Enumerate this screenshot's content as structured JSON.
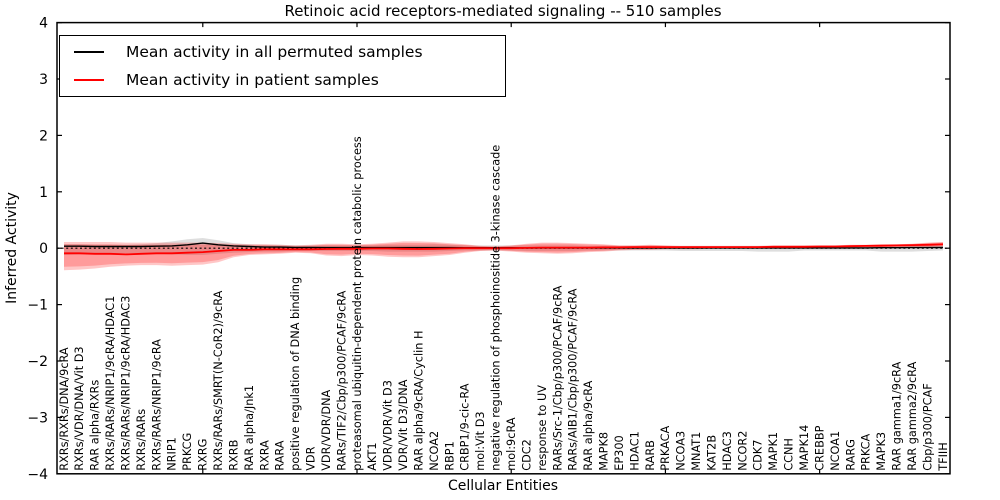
{
  "title": "Retinoic acid receptors-mediated signaling -- 510 samples",
  "axes": {
    "xlabel": "Cellular Entities",
    "ylabel": "Inferred Activity",
    "y_tick_labels": [
      "4",
      "3",
      "2",
      "1",
      "0",
      "−1",
      "−2",
      "−3",
      "−4"
    ],
    "y_tick_values": [
      4,
      3,
      2,
      1,
      0,
      -1,
      -2,
      -3,
      -4
    ]
  },
  "legend": {
    "items": [
      {
        "label": "Mean activity in all permuted samples",
        "color": "#000000"
      },
      {
        "label": "Mean activity in patient samples",
        "color": "#ff0000"
      }
    ]
  },
  "colors": {
    "permuted_line": "#000000",
    "patient_line": "#ff0000",
    "patient_band": "#ff0000",
    "permuted_band": "#000000",
    "frame": "#000000"
  },
  "chart_data": {
    "type": "line",
    "title": "Retinoic acid receptors-mediated signaling -- 510 samples",
    "xlabel": "Cellular Entities",
    "ylabel": "Inferred Activity",
    "ylim": [
      -4,
      4
    ],
    "grid": false,
    "legend_position": "upper left",
    "reference_line": {
      "y": 0,
      "style": "dashed",
      "color": "#000000"
    },
    "categories": [
      "RXRs/RXRs/DNA/9cRA",
      "RXRs/VDR/DNA/Vit D3",
      "RAR alpha/RXRs",
      "RXRs/RARs/NRIP1/9cRA/HDAC1",
      "RXRs/RARs/NRIP1/9cRA/HDAC3",
      "RXRs/RARs",
      "RXRs/RARs/NRIP1/9cRA",
      "NRIP1",
      "PRKCG",
      "RXRG",
      "RXRs/RARs/SMRT(N-CoR2)/9cRA",
      "RXRB",
      "RAR alpha/Jnk1",
      "RXRA",
      "RARA",
      "positive regulation of DNA binding",
      "VDR",
      "VDR/VDR/DNA",
      "RARs/TIF2/Cbp/p300/PCAF/9cRA",
      "proteasomal ubiquitin-dependent protein catabolic process",
      "AKT1",
      "VDR/VDR/Vit D3",
      "VDR/Vit D3/DNA",
      "RAR alpha/9cRA/Cyclin H",
      "NCOA2",
      "RBP1",
      "CRBP1/9-cic-RA",
      "mol:Vit D3",
      "negative regulation of phosphoinositide 3-kinase cascade",
      "mol:9cRA",
      "CDC2",
      "response to UV",
      "RARs/Src-1/Cbp/p300/PCAF/9cRA",
      "RARs/AIB1/Cbp/p300/PCAF/9cRA",
      "RAR alpha/9cRA",
      "MAPK8",
      "EP300",
      "HDAC1",
      "RARB",
      "PRKACA",
      "NCOA3",
      "MNAT1",
      "KAT2B",
      "HDAC3",
      "NCOR2",
      "CDK7",
      "MAPK1",
      "CCNH",
      "MAPK14",
      "CREBBP",
      "NCOA1",
      "RARG",
      "PRKCA",
      "MAPK3",
      "RAR gamma1/9cRA",
      "RAR gamma2/9cRA",
      "Cbp/p300/PCAF",
      "TFIIH"
    ],
    "series": [
      {
        "name": "Mean activity in all permuted samples",
        "color": "#000000",
        "values": [
          0.035,
          0.035,
          0.03,
          0.03,
          0.03,
          0.03,
          0.035,
          0.04,
          0.06,
          0.09,
          0.06,
          0.04,
          0.03,
          0.02,
          0.02,
          0.015,
          0.015,
          0.01,
          0.01,
          0.01,
          0.01,
          0.01,
          0.01,
          0.01,
          0.01,
          0.01,
          0.008,
          0.008,
          0.008,
          0.008,
          0.006,
          0.006,
          0.006,
          0.006,
          0.006,
          0.006,
          0.005,
          0.005,
          0.005,
          0.005,
          0.005,
          0.005,
          0.005,
          0.005,
          0.005,
          0.005,
          0.005,
          0.005,
          0.005,
          0.005,
          0.005,
          0.006,
          0.006,
          0.008,
          0.008,
          0.01,
          0.01,
          0.012
        ]
      },
      {
        "name": "Mean activity in patient samples",
        "color": "#ff0000",
        "values": [
          -0.09,
          -0.09,
          -0.1,
          -0.1,
          -0.11,
          -0.1,
          -0.09,
          -0.09,
          -0.08,
          -0.07,
          -0.05,
          -0.03,
          -0.03,
          -0.02,
          -0.02,
          -0.02,
          -0.02,
          -0.015,
          -0.01,
          -0.01,
          -0.005,
          -0.005,
          -0.01,
          -0.015,
          -0.01,
          -0.005,
          0,
          0,
          0,
          0,
          0.005,
          0.01,
          0.01,
          0.01,
          0.01,
          0.015,
          0.015,
          0.02,
          0.02,
          0.02,
          0.02,
          0.02,
          0.02,
          0.02,
          0.02,
          0.02,
          0.025,
          0.025,
          0.025,
          0.03,
          0.03,
          0.035,
          0.04,
          0.045,
          0.05,
          0.055,
          0.06,
          0.07
        ]
      }
    ],
    "bands": [
      {
        "name": "Permuted samples spread",
        "color": "#000000",
        "opacity": 0.13,
        "upper": [
          0.07,
          0.07,
          0.06,
          0.06,
          0.06,
          0.07,
          0.09,
          0.12,
          0.16,
          0.18,
          0.14,
          0.09,
          0.07,
          0.06,
          0.06,
          0.05,
          0.05,
          0.05,
          0.05,
          0.05,
          0.05,
          0.06,
          0.06,
          0.06,
          0.07,
          0.06,
          0.05,
          0.05,
          0.05,
          0.05,
          0.05,
          0.05,
          0.05,
          0.05,
          0.04,
          0.04,
          0.04,
          0.04,
          0.04,
          0.04,
          0.04,
          0.04,
          0.04,
          0.04,
          0.04,
          0.04,
          0.04,
          0.04,
          0.04,
          0.04,
          0.04,
          0.04,
          0.04,
          0.05,
          0.05,
          0.05,
          0.05,
          0.04
        ],
        "lower": [
          -0.12,
          -0.11,
          -0.1,
          -0.1,
          -0.09,
          -0.09,
          -0.1,
          -0.11,
          -0.12,
          -0.12,
          -0.1,
          -0.08,
          -0.07,
          -0.06,
          -0.06,
          -0.05,
          -0.05,
          -0.05,
          -0.05,
          -0.05,
          -0.05,
          -0.06,
          -0.06,
          -0.06,
          -0.06,
          -0.05,
          -0.04,
          -0.04,
          -0.04,
          -0.04,
          -0.05,
          -0.05,
          -0.05,
          -0.05,
          -0.04,
          -0.04,
          -0.04,
          -0.04,
          -0.04,
          -0.04,
          -0.05,
          -0.05,
          -0.05,
          -0.05,
          -0.05,
          -0.06,
          -0.06,
          -0.06,
          -0.04,
          -0.04,
          -0.04,
          -0.04,
          -0.04,
          -0.06,
          -0.06,
          -0.06,
          -0.05,
          -0.04
        ]
      },
      {
        "name": "Patient samples spread",
        "color": "#ff0000",
        "opacity": 0.22,
        "upper": [
          0.11,
          0.11,
          0.11,
          0.11,
          0.1,
          0.1,
          0.1,
          0.1,
          0.1,
          0.1,
          0.09,
          0.08,
          0.07,
          0.07,
          0.06,
          0.05,
          0.06,
          0.08,
          0.08,
          0.07,
          0.08,
          0.1,
          0.12,
          0.12,
          0.11,
          0.09,
          0.07,
          0.04,
          0.03,
          0.05,
          0.08,
          0.1,
          0.1,
          0.09,
          0.08,
          0.07,
          0.05,
          0.05,
          0.06,
          0.05,
          0.04,
          0.04,
          0.04,
          0.04,
          0.04,
          0.04,
          0.05,
          0.05,
          0.05,
          0.05,
          0.05,
          0.06,
          0.06,
          0.07,
          0.07,
          0.08,
          0.1,
          0.11
        ],
        "lower": [
          -0.39,
          -0.38,
          -0.36,
          -0.33,
          -0.31,
          -0.3,
          -0.3,
          -0.31,
          -0.3,
          -0.29,
          -0.25,
          -0.16,
          -0.12,
          -0.11,
          -0.1,
          -0.08,
          -0.09,
          -0.13,
          -0.14,
          -0.12,
          -0.13,
          -0.15,
          -0.16,
          -0.16,
          -0.14,
          -0.12,
          -0.08,
          -0.05,
          -0.04,
          -0.06,
          -0.08,
          -0.09,
          -0.1,
          -0.09,
          -0.07,
          -0.06,
          -0.04,
          -0.03,
          -0.03,
          -0.02,
          -0.02,
          -0.02,
          -0.01,
          -0.01,
          -0.01,
          -0.01,
          -0.01,
          -0.01,
          0,
          0,
          0,
          0,
          0.01,
          0.01,
          0.01,
          0.02,
          0.02,
          0.03
        ]
      }
    ]
  }
}
